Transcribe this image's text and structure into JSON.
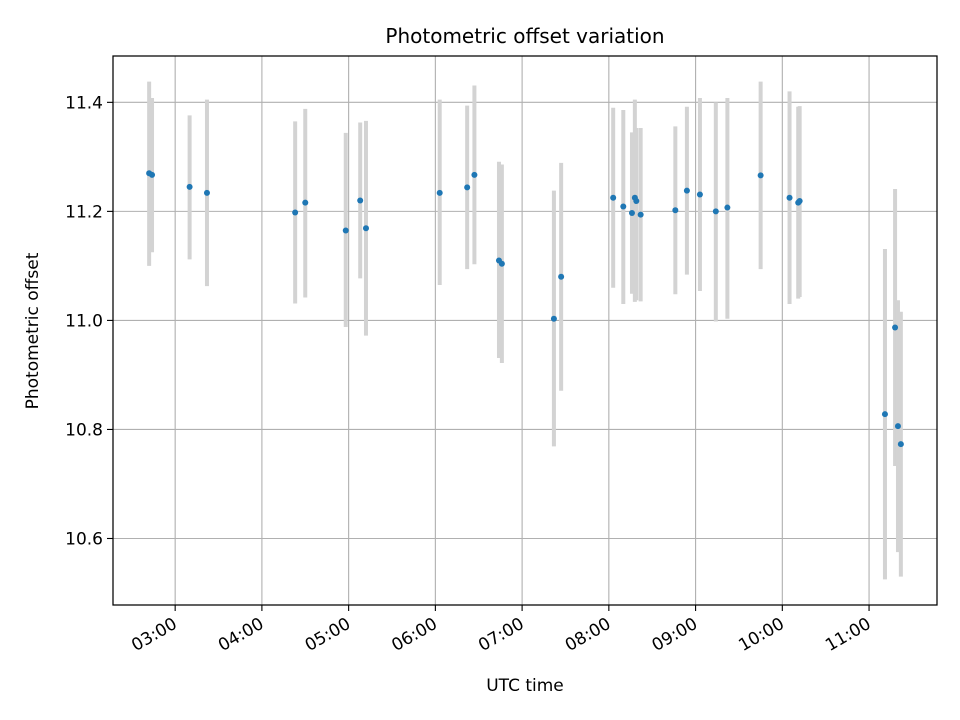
{
  "chart_data": {
    "type": "scatter",
    "title": "Photometric offset variation",
    "xlabel": "UTC time",
    "ylabel": "Photometric offset",
    "x_axis_kind": "time",
    "xlim": [
      "02:17",
      "11:47"
    ],
    "ylim": [
      10.478,
      11.485
    ],
    "x_ticks": [
      "03:00",
      "04:00",
      "05:00",
      "06:00",
      "07:00",
      "08:00",
      "09:00",
      "10:00",
      "11:00"
    ],
    "y_ticks": [
      10.6,
      10.8,
      11.0,
      11.2,
      11.4
    ],
    "y_tick_labels": [
      "10.6",
      "10.8",
      "11.0",
      "11.2",
      "11.4"
    ],
    "grid": true,
    "point_color": "#1f77b4",
    "errorbar_color": "#d3d3d3",
    "series": [
      {
        "points": [
          {
            "t": "02:42",
            "y": 11.27,
            "lo": 11.1,
            "hi": 11.438
          },
          {
            "t": "02:44",
            "y": 11.267,
            "lo": 11.125,
            "hi": 11.408
          },
          {
            "t": "03:10",
            "y": 11.245,
            "lo": 11.112,
            "hi": 11.376
          },
          {
            "t": "03:22",
            "y": 11.234,
            "lo": 11.063,
            "hi": 11.405
          },
          {
            "t": "04:23",
            "y": 11.198,
            "lo": 11.031,
            "hi": 11.365
          },
          {
            "t": "04:30",
            "y": 11.216,
            "lo": 11.042,
            "hi": 11.388
          },
          {
            "t": "04:58",
            "y": 11.165,
            "lo": 10.988,
            "hi": 11.344
          },
          {
            "t": "05:08",
            "y": 11.22,
            "lo": 11.077,
            "hi": 11.363
          },
          {
            "t": "05:12",
            "y": 11.169,
            "lo": 10.972,
            "hi": 11.366
          },
          {
            "t": "06:03",
            "y": 11.234,
            "lo": 11.065,
            "hi": 11.405
          },
          {
            "t": "06:22",
            "y": 11.244,
            "lo": 11.094,
            "hi": 11.394
          },
          {
            "t": "06:27",
            "y": 11.267,
            "lo": 11.103,
            "hi": 11.431
          },
          {
            "t": "06:44",
            "y": 11.11,
            "lo": 10.931,
            "hi": 11.291
          },
          {
            "t": "06:46",
            "y": 11.104,
            "lo": 10.922,
            "hi": 11.286
          },
          {
            "t": "07:22",
            "y": 11.003,
            "lo": 10.769,
            "hi": 11.238
          },
          {
            "t": "07:27",
            "y": 11.08,
            "lo": 10.871,
            "hi": 11.289
          },
          {
            "t": "08:03",
            "y": 11.225,
            "lo": 11.06,
            "hi": 11.39
          },
          {
            "t": "08:10",
            "y": 11.209,
            "lo": 11.03,
            "hi": 11.386
          },
          {
            "t": "08:16",
            "y": 11.197,
            "lo": 11.049,
            "hi": 11.345
          },
          {
            "t": "08:18",
            "y": 11.225,
            "lo": 11.034,
            "hi": 11.405
          },
          {
            "t": "08:19",
            "y": 11.219,
            "lo": 11.037,
            "hi": 11.353
          },
          {
            "t": "08:22",
            "y": 11.194,
            "lo": 11.035,
            "hi": 11.353
          },
          {
            "t": "08:46",
            "y": 11.202,
            "lo": 11.048,
            "hi": 11.356
          },
          {
            "t": "08:54",
            "y": 11.238,
            "lo": 11.084,
            "hi": 11.392
          },
          {
            "t": "09:03",
            "y": 11.231,
            "lo": 11.054,
            "hi": 11.408
          },
          {
            "t": "09:14",
            "y": 11.2,
            "lo": 10.998,
            "hi": 11.4
          },
          {
            "t": "09:22",
            "y": 11.207,
            "lo": 11.003,
            "hi": 11.408
          },
          {
            "t": "09:45",
            "y": 11.266,
            "lo": 11.094,
            "hi": 11.438
          },
          {
            "t": "10:05",
            "y": 11.225,
            "lo": 11.03,
            "hi": 11.42
          },
          {
            "t": "10:11",
            "y": 11.216,
            "lo": 11.04,
            "hi": 11.392
          },
          {
            "t": "10:12",
            "y": 11.219,
            "lo": 11.043,
            "hi": 11.393
          },
          {
            "t": "11:11",
            "y": 10.828,
            "lo": 10.525,
            "hi": 11.131
          },
          {
            "t": "11:18",
            "y": 10.987,
            "lo": 10.733,
            "hi": 11.241
          },
          {
            "t": "11:20",
            "y": 10.806,
            "lo": 10.575,
            "hi": 11.037
          },
          {
            "t": "11:22",
            "y": 10.773,
            "lo": 10.53,
            "hi": 11.016
          }
        ]
      }
    ]
  }
}
